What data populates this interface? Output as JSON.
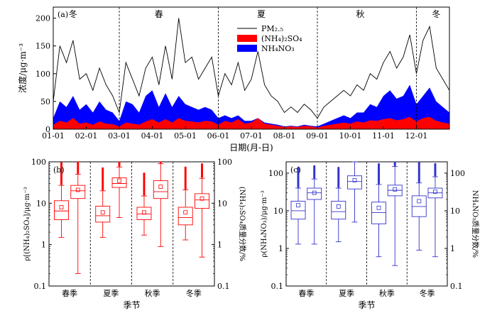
{
  "chart_data": [
    {
      "panel": "(a)",
      "type": "area",
      "ylabel": "浓度/μg·m⁻³",
      "xlabel": "日期(月-日)",
      "ylim": [
        0,
        220
      ],
      "yticks": [
        0,
        50,
        100,
        150,
        200
      ],
      "xtick_labels": [
        "01-01",
        "02-01",
        "03-01",
        "04-01",
        "05-01",
        "06-01",
        "07-01",
        "08-01",
        "09-01",
        "10-01",
        "11-01",
        "12-01"
      ],
      "season_labels": [
        {
          "label": "冬",
          "month": 1.6
        },
        {
          "label": "春",
          "month": 4.2
        },
        {
          "label": "夏",
          "month": 7.3
        },
        {
          "label": "秋",
          "month": 10.3
        },
        {
          "label": "冬",
          "month": 12.6
        }
      ],
      "season_boundaries_month": [
        3,
        6,
        9,
        12
      ],
      "legend": {
        "placement": "top-right",
        "entries": [
          {
            "name": "PM₂.₅",
            "color": "#000000",
            "kind": "line"
          },
          {
            "name": "(NH₄)₂SO₄",
            "color": "#ff0000",
            "kind": "fill"
          },
          {
            "name": "NH₄NO₃",
            "color": "#0000ff",
            "kind": "fill"
          }
        ]
      },
      "series": [
        {
          "name": "PM₂.₅",
          "x_month": [
            1.0,
            1.2,
            1.4,
            1.6,
            1.8,
            2.0,
            2.2,
            2.4,
            2.6,
            2.8,
            3.0,
            3.2,
            3.4,
            3.6,
            3.8,
            4.0,
            4.2,
            4.4,
            4.6,
            4.8,
            5.0,
            5.2,
            5.4,
            5.6,
            5.8,
            6.0,
            6.2,
            6.4,
            6.6,
            6.8,
            7.0,
            7.2,
            7.4,
            7.6,
            7.8,
            8.0,
            8.2,
            8.4,
            8.6,
            8.8,
            9.0,
            9.2,
            9.4,
            9.6,
            9.8,
            10.0,
            10.2,
            10.4,
            10.6,
            10.8,
            11.0,
            11.2,
            11.4,
            11.6,
            11.8,
            12.0,
            12.2,
            12.4,
            12.6,
            12.8,
            13.0
          ],
          "y": [
            50,
            150,
            120,
            160,
            90,
            100,
            70,
            110,
            80,
            60,
            30,
            120,
            90,
            60,
            110,
            130,
            80,
            150,
            90,
            200,
            120,
            130,
            90,
            110,
            130,
            60,
            100,
            80,
            120,
            70,
            90,
            140,
            80,
            60,
            50,
            30,
            40,
            30,
            45,
            35,
            20,
            40,
            50,
            60,
            70,
            60,
            80,
            70,
            100,
            90,
            120,
            140,
            110,
            130,
            170,
            100,
            160,
            185,
            110,
            90,
            70
          ]
        },
        {
          "name": "NH₄NO₃",
          "x_month": [
            1.0,
            1.2,
            1.4,
            1.6,
            1.8,
            2.0,
            2.2,
            2.4,
            2.6,
            2.8,
            3.0,
            3.2,
            3.4,
            3.6,
            3.8,
            4.0,
            4.2,
            4.4,
            4.6,
            4.8,
            5.0,
            5.2,
            5.4,
            5.6,
            5.8,
            6.0,
            6.2,
            6.4,
            6.6,
            6.8,
            7.0,
            7.2,
            7.4,
            7.6,
            7.8,
            8.0,
            8.2,
            8.4,
            8.6,
            8.8,
            9.0,
            9.2,
            9.4,
            9.6,
            9.8,
            10.0,
            10.2,
            10.4,
            10.6,
            10.8,
            11.0,
            11.2,
            11.4,
            11.6,
            11.8,
            12.0,
            12.2,
            12.4,
            12.6,
            12.8,
            13.0
          ],
          "y": [
            20,
            50,
            40,
            60,
            35,
            45,
            30,
            50,
            35,
            30,
            15,
            50,
            45,
            30,
            60,
            70,
            40,
            65,
            40,
            60,
            45,
            40,
            35,
            40,
            35,
            20,
            25,
            20,
            25,
            15,
            15,
            20,
            12,
            10,
            8,
            5,
            6,
            5,
            8,
            6,
            5,
            10,
            15,
            20,
            25,
            20,
            30,
            30,
            45,
            40,
            60,
            70,
            55,
            60,
            80,
            45,
            60,
            75,
            50,
            40,
            30
          ]
        },
        {
          "name": "(NH₄)₂SO₄",
          "x_month": [
            1.0,
            1.2,
            1.4,
            1.6,
            1.8,
            2.0,
            2.2,
            2.4,
            2.6,
            2.8,
            3.0,
            3.2,
            3.4,
            3.6,
            3.8,
            4.0,
            4.2,
            4.4,
            4.6,
            4.8,
            5.0,
            5.2,
            5.4,
            5.6,
            5.8,
            6.0,
            6.2,
            6.4,
            6.6,
            6.8,
            7.0,
            7.2,
            7.4,
            7.6,
            7.8,
            8.0,
            8.2,
            8.4,
            8.6,
            8.8,
            9.0,
            9.2,
            9.4,
            9.6,
            9.8,
            10.0,
            10.2,
            10.4,
            10.6,
            10.8,
            11.0,
            11.2,
            11.4,
            11.6,
            11.8,
            12.0,
            12.2,
            12.4,
            12.6,
            12.8,
            13.0
          ],
          "y": [
            8,
            15,
            12,
            20,
            10,
            12,
            8,
            14,
            10,
            9,
            5,
            12,
            10,
            8,
            14,
            18,
            12,
            18,
            12,
            20,
            15,
            14,
            12,
            15,
            14,
            8,
            15,
            12,
            18,
            10,
            12,
            20,
            10,
            8,
            6,
            4,
            5,
            4,
            6,
            5,
            3,
            6,
            8,
            10,
            12,
            10,
            14,
            12,
            16,
            15,
            18,
            20,
            16,
            18,
            22,
            14,
            20,
            22,
            15,
            12,
            10
          ]
        }
      ]
    },
    {
      "panel": "(b)",
      "type": "box",
      "color": "#ff0000",
      "xlabel": "季节",
      "ylabel_left": "ρ[(NH₄)₂SO₄]/μg·m⁻³",
      "ylabel_right": "(NH₄)₂SO₄质量分数/%",
      "scale": "log",
      "ylim": [
        0.1,
        100
      ],
      "yticks": [
        0.1,
        1,
        10,
        100
      ],
      "categories": [
        "春季",
        "夏季",
        "秋季",
        "冬季"
      ],
      "series": [
        {
          "name": "concentration",
          "boxes": [
            {
              "min": 1.5,
              "q1": 4.0,
              "median": 6.5,
              "q3": 11.5,
              "max": 27,
              "mean": 8
            },
            {
              "min": 1.5,
              "q1": 3.5,
              "median": 5.0,
              "q3": 8.5,
              "max": 20,
              "mean": 6
            },
            {
              "min": 1.7,
              "q1": 4.0,
              "median": 5.5,
              "q3": 8.0,
              "max": 15,
              "mean": 6
            },
            {
              "min": 1.3,
              "q1": 3.0,
              "median": 4.5,
              "q3": 8.0,
              "max": 21,
              "mean": 6
            }
          ]
        },
        {
          "name": "mass_fraction",
          "boxes": [
            {
              "min": 0.2,
              "q1": 13,
              "median": 20,
              "q3": 27,
              "max": 50,
              "mean": 21
            },
            {
              "min": 4.5,
              "q1": 24,
              "median": 30,
              "q3": 41,
              "max": 75,
              "mean": 35
            },
            {
              "min": 0.9,
              "q1": 13,
              "median": 19,
              "q3": 35,
              "max": 90,
              "mean": 25
            },
            {
              "min": 0.5,
              "q1": 7.5,
              "median": 12,
              "q3": 17,
              "max": 40,
              "mean": 13
            }
          ]
        }
      ]
    },
    {
      "panel": "(c)",
      "type": "box",
      "color": "#3333cc",
      "xlabel": "季节",
      "ylabel_left": "ρ(NH₄NO₃)/μg·m⁻³",
      "ylabel_right": "NH₄NO₃质量分数/%",
      "scale": "log",
      "ylim": [
        0.1,
        200
      ],
      "yticks": [
        0.1,
        1,
        10,
        100
      ],
      "categories": [
        "春季",
        "夏季",
        "秋季",
        "冬季"
      ],
      "series": [
        {
          "name": "concentration",
          "boxes": [
            {
              "min": 1.3,
              "q1": 6.0,
              "median": 10,
              "q3": 18,
              "max": 40,
              "mean": 14
            },
            {
              "min": 1.5,
              "q1": 6.0,
              "median": 9.5,
              "q3": 18,
              "max": 40,
              "mean": 13
            },
            {
              "min": 0.6,
              "q1": 4.5,
              "median": 9.0,
              "q3": 17,
              "max": 50,
              "mean": 12
            },
            {
              "min": 0.9,
              "q1": 7.0,
              "median": 13,
              "q3": 25,
              "max": 55,
              "mean": 18
            }
          ]
        },
        {
          "name": "mass_fraction",
          "boxes": [
            {
              "min": 1.3,
              "q1": 20,
              "median": 30,
              "q3": 40,
              "max": 70,
              "mean": 30
            },
            {
              "min": 5,
              "q1": 38,
              "median": 60,
              "q3": 85,
              "max": 200,
              "mean": 65
            },
            {
              "min": 0.35,
              "q1": 25,
              "median": 35,
              "q3": 48,
              "max": 150,
              "mean": 37
            },
            {
              "min": 0.6,
              "q1": 22,
              "median": 30,
              "q3": 40,
              "max": 80,
              "mean": 32
            }
          ]
        }
      ]
    }
  ]
}
